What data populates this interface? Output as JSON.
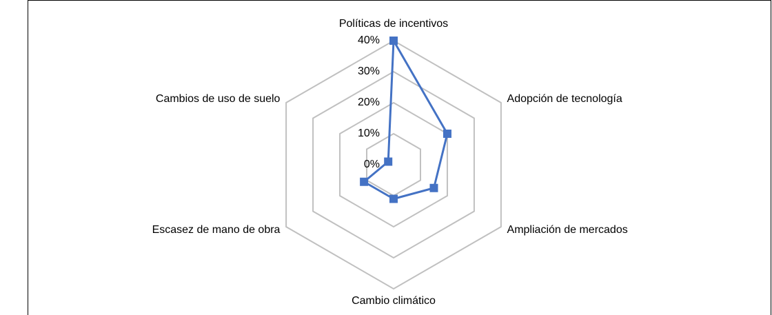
{
  "chart_data": {
    "type": "radar",
    "categories": [
      "Políticas de incentivos",
      "Adopción de tecnología",
      "Ampliación de mercados",
      "Cambio climático",
      "Escasez de mano de obra",
      "Cambios de uso de suelo"
    ],
    "series": [
      {
        "color": "#4472c4",
        "values": [
          40,
          20,
          15,
          11,
          11,
          2
        ]
      }
    ],
    "ylim": [
      0,
      40
    ],
    "yticks": [
      {
        "value": 0,
        "label": "0%"
      },
      {
        "value": 10,
        "label": "10%"
      },
      {
        "value": 20,
        "label": "20%"
      },
      {
        "value": 30,
        "label": "30%"
      },
      {
        "value": 40,
        "label": "40%"
      }
    ],
    "grid": true,
    "grid_color": "#c0c0c0"
  }
}
